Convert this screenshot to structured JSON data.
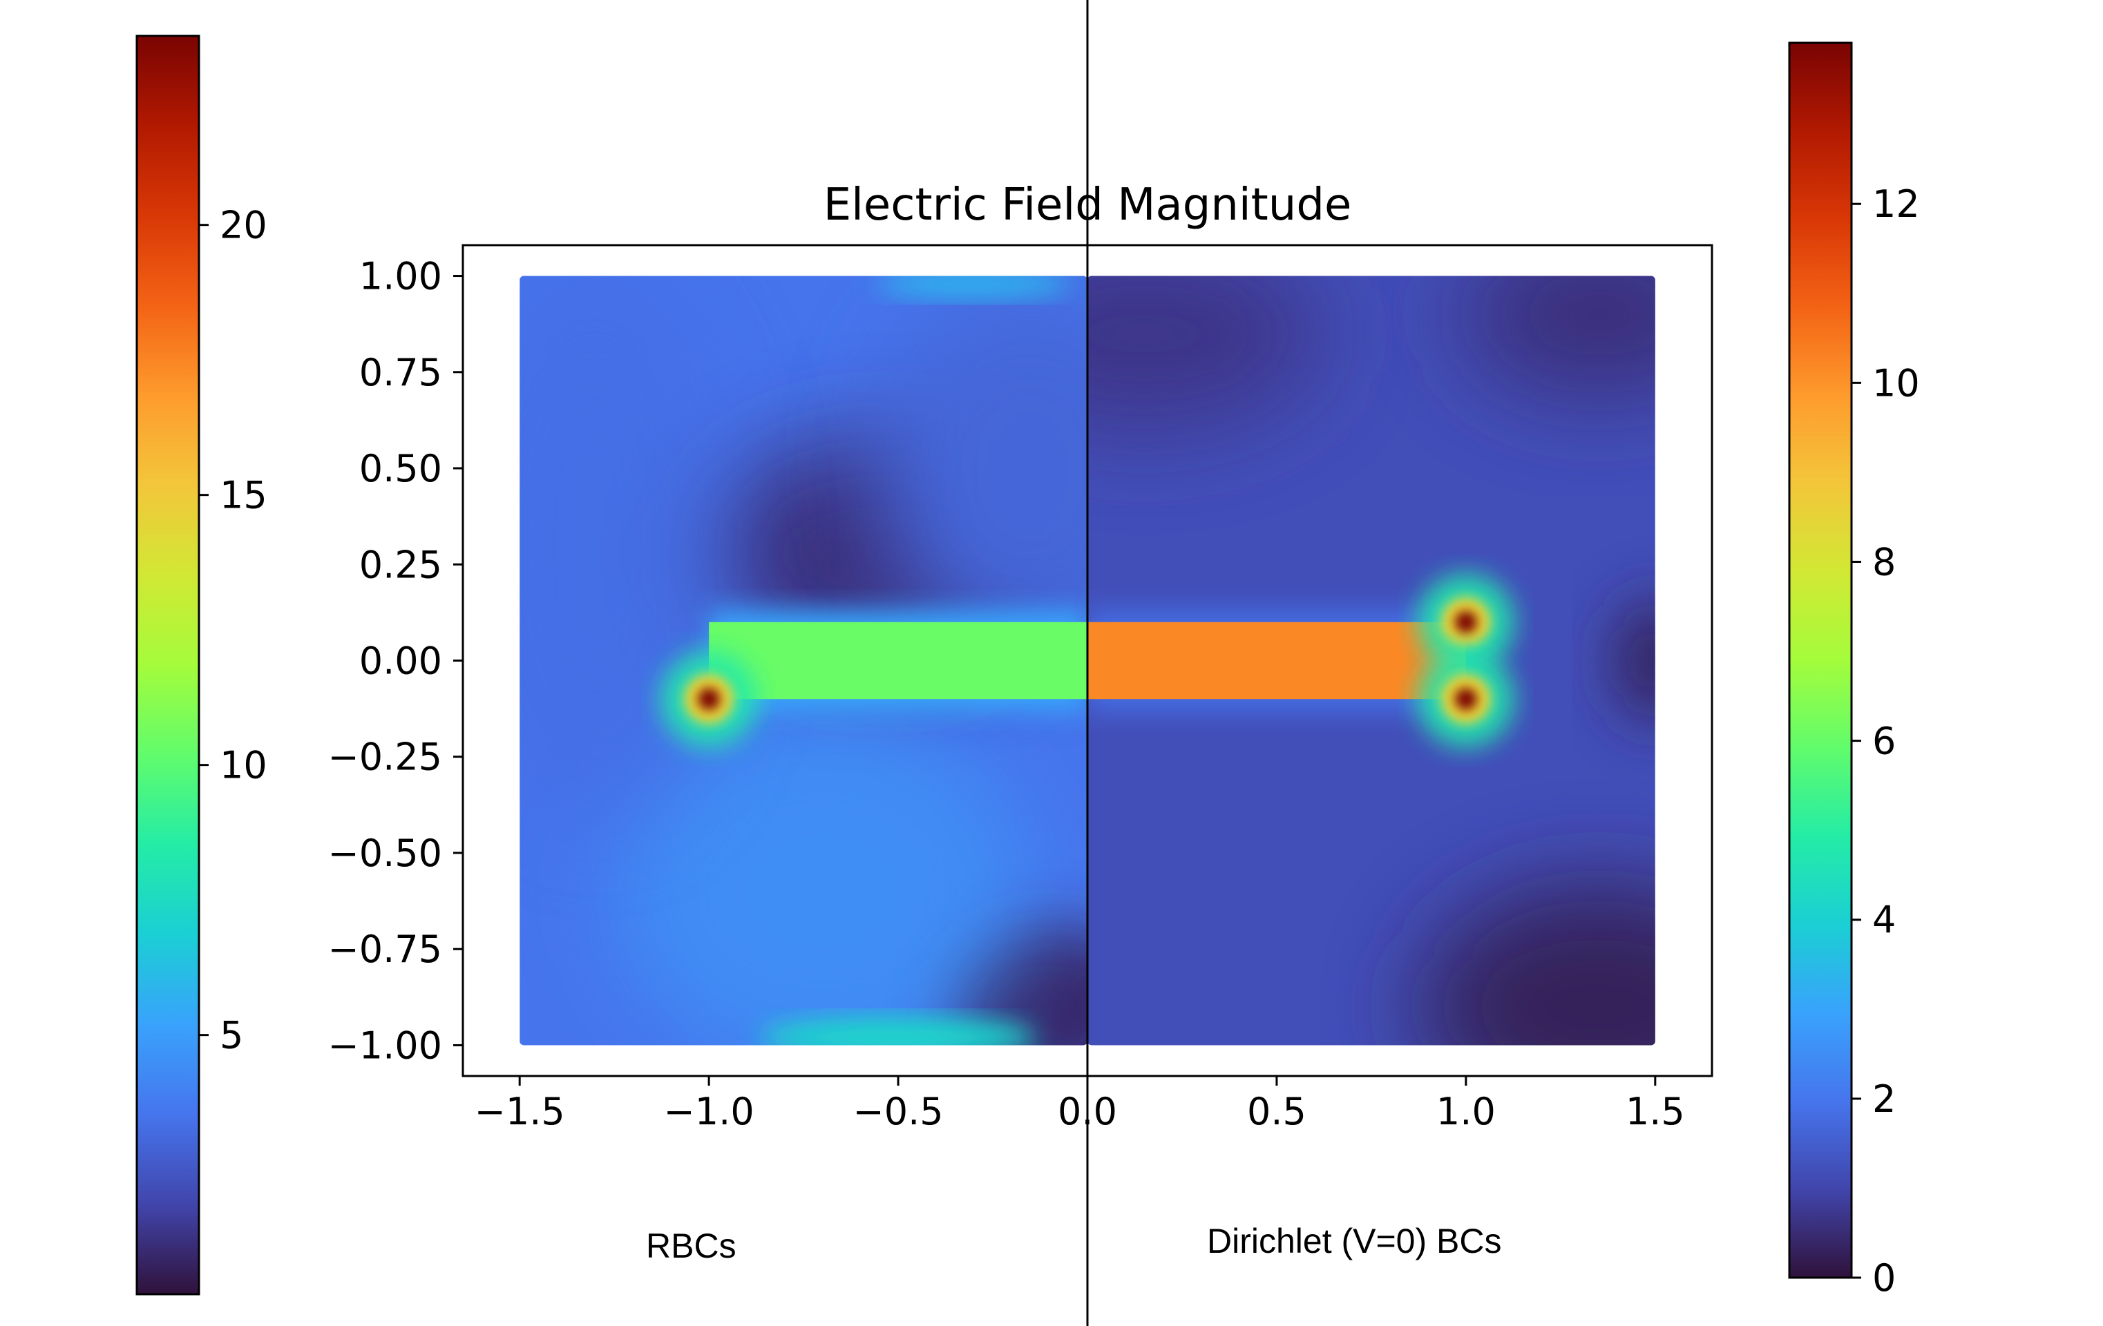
{
  "chart_data": {
    "type": "heatmap",
    "title": "Electric Field Magnitude",
    "xlim": [
      -1.65,
      1.65
    ],
    "ylim": [
      -1.08,
      1.08
    ],
    "xticks": [
      -1.5,
      -1.0,
      -0.5,
      0.0,
      0.5,
      1.0,
      1.5
    ],
    "xtick_labels": [
      "−1.5",
      "−1.0",
      "−0.5",
      "0.0",
      "0.5",
      "1.0",
      "1.5"
    ],
    "yticks": [
      1.0,
      0.75,
      0.5,
      0.25,
      0.0,
      -0.25,
      -0.5,
      -0.75,
      -1.0
    ],
    "ytick_labels": [
      "1.00",
      "0.75",
      "0.50",
      "0.25",
      "0.00",
      "−0.25",
      "−0.50",
      "−0.75",
      "−1.00"
    ],
    "grid": false,
    "domain": {
      "x": [
        -1.5,
        1.5
      ],
      "y": [
        -1.0,
        1.0
      ]
    },
    "conductor": {
      "x": [
        -1.0,
        1.0
      ],
      "y": [
        -0.1,
        0.1
      ]
    },
    "colormap": "turbo",
    "colormap_stops": [
      "#30123b",
      "#4145ab",
      "#4675ed",
      "#39a2fc",
      "#1bcfd4",
      "#24eca6",
      "#61fc6c",
      "#a4fc3b",
      "#d1e834",
      "#f3c63a",
      "#fe9b2d",
      "#f36315",
      "#d93806",
      "#b11901",
      "#7a0402"
    ],
    "panels": [
      {
        "name": "RBCs",
        "x_range": [
          -1.5,
          0.0
        ],
        "colorbar": {
          "position": "left",
          "range": [
            0.2,
            23.5
          ],
          "ticks": [
            5,
            10,
            15,
            20
          ],
          "tick_labels": [
            "5",
            "10",
            "15",
            "20"
          ]
        },
        "conductor_value": 10.4,
        "background_value": 3.5,
        "hotspots": [
          {
            "x": -1.0,
            "y": -0.1,
            "value": 23.5
          }
        ]
      },
      {
        "name": "Dirichlet (V=0) BCs",
        "x_range": [
          0.0,
          1.5
        ],
        "colorbar": {
          "position": "right",
          "range": [
            0,
            13.8
          ],
          "ticks": [
            0,
            2,
            4,
            6,
            8,
            10,
            12
          ],
          "tick_labels": [
            "0",
            "2",
            "4",
            "6",
            "8",
            "10",
            "12"
          ]
        },
        "conductor_value": 10.2,
        "background_value": 1.2,
        "hotspots": [
          {
            "x": 1.0,
            "y": 0.1,
            "value": 13.8
          },
          {
            "x": 1.0,
            "y": -0.1,
            "value": 13.8
          }
        ]
      }
    ]
  },
  "captions": {
    "left": "RBCs",
    "right": "Dirichlet (V=0) BCs"
  }
}
